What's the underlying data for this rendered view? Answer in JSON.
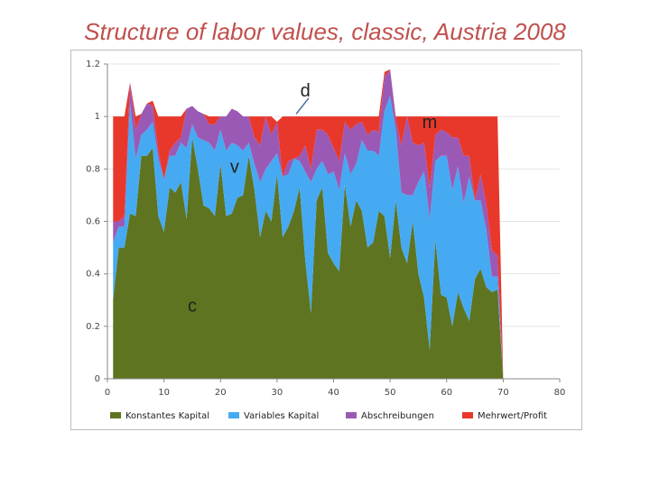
{
  "title": "Structure of labor values, classic, Austria 2008",
  "chart_data": {
    "type": "area",
    "stacked": true,
    "xlim": [
      0,
      80
    ],
    "ylim": [
      0,
      1.2
    ],
    "x_ticks": [
      0,
      10,
      20,
      30,
      40,
      50,
      60,
      70,
      80
    ],
    "y_ticks": [
      0,
      0.2,
      0.4,
      0.6,
      0.8,
      1,
      1.2
    ],
    "y_tick_labels": [
      "0",
      "0.2",
      "0.4",
      "0.6",
      "0.8",
      "1",
      "1.2"
    ],
    "grid": "horizontal",
    "legend_position": "bottom",
    "x": [
      1,
      2,
      3,
      4,
      5,
      6,
      7,
      8,
      9,
      10,
      11,
      12,
      13,
      14,
      15,
      16,
      17,
      18,
      19,
      20,
      21,
      22,
      23,
      24,
      25,
      26,
      27,
      28,
      29,
      30,
      31,
      32,
      33,
      34,
      35,
      36,
      37,
      38,
      39,
      40,
      41,
      42,
      43,
      44,
      45,
      46,
      47,
      48,
      49,
      50,
      51,
      52,
      53,
      54,
      55,
      56,
      57,
      58,
      59,
      60,
      61,
      62,
      63,
      64,
      65,
      66,
      67,
      68,
      69,
      70,
      71,
      72,
      73,
      74,
      75
    ],
    "series": [
      {
        "name": "Konstantes Kapital",
        "color": "#5e7420",
        "values": [
          0.3,
          0.5,
          0.5,
          0.63,
          0.62,
          0.85,
          0.85,
          0.88,
          0.62,
          0.56,
          0.73,
          0.71,
          0.75,
          0.61,
          0.92,
          0.8,
          0.66,
          0.65,
          0.62,
          0.82,
          0.62,
          0.63,
          0.69,
          0.7,
          0.85,
          0.72,
          0.54,
          0.64,
          0.6,
          0.78,
          0.54,
          0.58,
          0.64,
          0.73,
          0.45,
          0.25,
          0.68,
          0.73,
          0.48,
          0.44,
          0.41,
          0.74,
          0.58,
          0.68,
          0.64,
          0.5,
          0.52,
          0.64,
          0.62,
          0.46,
          0.68,
          0.5,
          0.44,
          0.6,
          0.4,
          0.31,
          0.11,
          0.53,
          0.32,
          0.31,
          0.2,
          0.33,
          0.27,
          0.22,
          0.38,
          0.42,
          0.35,
          0.33,
          0.34,
          0.0,
          0.0,
          0.0,
          0.0,
          0.0,
          0.0
        ]
      },
      {
        "name": "Variables Kapital",
        "color": "#45aaf2",
        "values": [
          0.22,
          0.08,
          0.08,
          0.42,
          0.22,
          0.08,
          0.1,
          0.1,
          0.22,
          0.2,
          0.12,
          0.14,
          0.15,
          0.27,
          0.05,
          0.12,
          0.25,
          0.25,
          0.25,
          0.13,
          0.25,
          0.27,
          0.2,
          0.17,
          0.05,
          0.1,
          0.21,
          0.16,
          0.23,
          0.08,
          0.23,
          0.2,
          0.2,
          0.1,
          0.34,
          0.5,
          0.12,
          0.1,
          0.3,
          0.35,
          0.31,
          0.12,
          0.2,
          0.14,
          0.27,
          0.37,
          0.35,
          0.21,
          0.4,
          0.62,
          0.27,
          0.21,
          0.26,
          0.1,
          0.35,
          0.48,
          0.5,
          0.3,
          0.53,
          0.54,
          0.52,
          0.48,
          0.4,
          0.55,
          0.3,
          0.26,
          0.22,
          0.06,
          0.05,
          0.0,
          0.0,
          0.0,
          0.0,
          0.0,
          0.0
        ]
      },
      {
        "name": "Abschreibungen",
        "color": "#9b59b6",
        "values": [
          0.08,
          0.02,
          0.04,
          0.08,
          0.11,
          0.08,
          0.1,
          0.06,
          0.03,
          0.0,
          0.02,
          0.05,
          0.02,
          0.15,
          0.07,
          0.1,
          0.1,
          0.07,
          0.1,
          0.05,
          0.13,
          0.13,
          0.13,
          0.13,
          0.1,
          0.1,
          0.14,
          0.2,
          0.1,
          0.12,
          0.0,
          0.05,
          0.0,
          0.02,
          0.1,
          0.05,
          0.15,
          0.12,
          0.15,
          0.09,
          0.11,
          0.12,
          0.17,
          0.15,
          0.07,
          0.06,
          0.08,
          0.09,
          0.13,
          0.1,
          0.04,
          0.18,
          0.3,
          0.2,
          0.14,
          0.11,
          0.12,
          0.1,
          0.1,
          0.09,
          0.2,
          0.11,
          0.18,
          0.08,
          0.0,
          0.1,
          0.1,
          0.1,
          0.08,
          0.0,
          0.0,
          0.0,
          0.0,
          0.0,
          0.0
        ]
      },
      {
        "name": "Mehrwert/Profit",
        "color": "#e8382b",
        "values": [
          0.4,
          0.4,
          0.38,
          0.0,
          0.05,
          0.0,
          0.0,
          0.02,
          0.13,
          0.24,
          0.13,
          0.1,
          0.08,
          0.0,
          0.0,
          0.0,
          0.0,
          0.03,
          0.03,
          0.0,
          0.0,
          0.0,
          0.0,
          0.0,
          0.0,
          0.08,
          0.11,
          0.0,
          0.07,
          0.0,
          0.23,
          0.17,
          0.16,
          0.15,
          0.11,
          0.2,
          0.05,
          0.05,
          0.07,
          0.12,
          0.17,
          0.02,
          0.05,
          0.03,
          0.02,
          0.07,
          0.05,
          0.06,
          0.02,
          0.0,
          0.01,
          0.11,
          0.0,
          0.1,
          0.11,
          0.1,
          0.27,
          0.07,
          0.05,
          0.06,
          0.08,
          0.08,
          0.15,
          0.15,
          0.32,
          0.22,
          0.33,
          0.51,
          0.53,
          0.0,
          0.0,
          0.0,
          0.0,
          0.0,
          0.0
        ]
      }
    ],
    "annotations": [
      {
        "text": "d",
        "x": 35,
        "y": 1.1
      },
      {
        "text": "m",
        "x": 57,
        "y": 0.98
      },
      {
        "text": "v",
        "x": 22.5,
        "y": 0.81
      },
      {
        "text": "c",
        "x": 15,
        "y": 0.28
      }
    ]
  }
}
